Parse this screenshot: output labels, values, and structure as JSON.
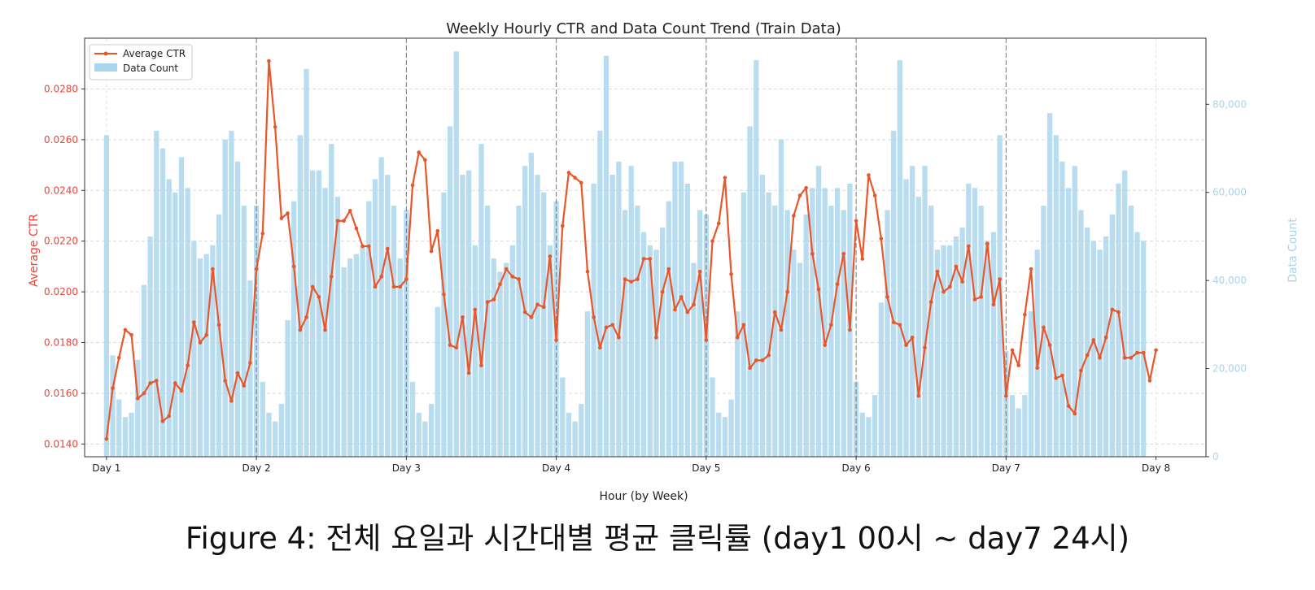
{
  "chart_data": {
    "type": "bar+line",
    "title": "Weekly Hourly CTR and Data Count Trend (Train Data)",
    "xlabel": "Hour (by Week)",
    "ylabel_left": "Average CTR",
    "ylabel_right": "Data Count",
    "x_ticks": [
      "Day 1",
      "Day 2",
      "Day 3",
      "Day 4",
      "Day 5",
      "Day 6",
      "Day 7",
      "Day 8"
    ],
    "xlim": [
      -3.5,
      176
    ],
    "ylim_left": [
      0.0135,
      0.03
    ],
    "ylim_right": [
      0,
      95000
    ],
    "y_ticks_left": [
      "0.0140",
      "0.0160",
      "0.0180",
      "0.0200",
      "0.0220",
      "0.0240",
      "0.0260",
      "0.0280"
    ],
    "y_ticks_left_values": [
      0.014,
      0.016,
      0.018,
      0.02,
      0.022,
      0.024,
      0.026,
      0.028
    ],
    "y_ticks_right": [
      "0",
      "20,000",
      "40,000",
      "60,000",
      "80,000"
    ],
    "y_ticks_right_values": [
      0,
      20000,
      40000,
      60000,
      80000
    ],
    "grid": true,
    "legend_position": "top-left",
    "series": [
      {
        "name": "Average CTR",
        "type": "line",
        "color": "#e8562a",
        "values": [
          0.0142,
          0.0162,
          0.0174,
          0.0185,
          0.0183,
          0.0158,
          0.016,
          0.0164,
          0.0165,
          0.0149,
          0.0151,
          0.0164,
          0.0161,
          0.0171,
          0.0188,
          0.018,
          0.0183,
          0.0209,
          0.0187,
          0.0165,
          0.0157,
          0.0168,
          0.0163,
          0.0172,
          0.0209,
          0.0223,
          0.0291,
          0.0265,
          0.0229,
          0.0231,
          0.021,
          0.0185,
          0.019,
          0.0202,
          0.0198,
          0.0185,
          0.0206,
          0.0228,
          0.0228,
          0.0232,
          0.0225,
          0.0218,
          0.0218,
          0.0202,
          0.0206,
          0.0217,
          0.0202,
          0.0202,
          0.0205,
          0.0242,
          0.0255,
          0.0252,
          0.0216,
          0.0224,
          0.0199,
          0.0179,
          0.0178,
          0.019,
          0.0168,
          0.0193,
          0.0171,
          0.0196,
          0.0197,
          0.0203,
          0.0209,
          0.0206,
          0.0205,
          0.0192,
          0.019,
          0.0195,
          0.0194,
          0.0214,
          0.0181,
          0.0226,
          0.0247,
          0.0245,
          0.0243,
          0.0208,
          0.019,
          0.0178,
          0.0186,
          0.0187,
          0.0182,
          0.0205,
          0.0204,
          0.0205,
          0.0213,
          0.0213,
          0.0182,
          0.02,
          0.0209,
          0.0193,
          0.0198,
          0.0192,
          0.0195,
          0.0208,
          0.0181,
          0.022,
          0.0227,
          0.0245,
          0.0207,
          0.0182,
          0.0187,
          0.017,
          0.0173,
          0.0173,
          0.0175,
          0.0192,
          0.0185,
          0.02,
          0.023,
          0.0238,
          0.0241,
          0.0215,
          0.0201,
          0.0179,
          0.0187,
          0.0203,
          0.0215,
          0.0185,
          0.0228,
          0.0213,
          0.0246,
          0.0238,
          0.0221,
          0.0198,
          0.0188,
          0.0187,
          0.0179,
          0.0182,
          0.0159,
          0.0178,
          0.0196,
          0.0208,
          0.02,
          0.0202,
          0.021,
          0.0204,
          0.0218,
          0.0197,
          0.0198,
          0.0219,
          0.0195,
          0.0205,
          0.0159,
          0.0177,
          0.0171,
          0.0191,
          0.0209,
          0.017,
          0.0186,
          0.0179,
          0.0166,
          0.0167,
          0.0155,
          0.0152,
          0.0169,
          0.0175,
          0.0181,
          0.0174,
          0.0182,
          0.0193,
          0.0192,
          0.0174,
          0.0174,
          0.0176,
          0.0176,
          0.0165,
          0.0177
        ]
      },
      {
        "name": "Data Count",
        "type": "bar",
        "color": "#a8d4ec",
        "values": [
          73000,
          23000,
          13000,
          9000,
          10000,
          22000,
          39000,
          50000,
          74000,
          70000,
          63000,
          60000,
          68000,
          61000,
          49000,
          45000,
          46000,
          48000,
          55000,
          72000,
          74000,
          67000,
          57000,
          40000,
          57000,
          17000,
          10000,
          8000,
          12000,
          31000,
          58000,
          73000,
          88000,
          65000,
          65000,
          61000,
          71000,
          59000,
          43000,
          45000,
          46000,
          48000,
          58000,
          63000,
          68000,
          64000,
          57000,
          45000,
          56000,
          17000,
          10000,
          8000,
          12000,
          34000,
          60000,
          75000,
          92000,
          64000,
          65000,
          48000,
          71000,
          57000,
          45000,
          42000,
          44000,
          48000,
          57000,
          66000,
          69000,
          64000,
          60000,
          48000,
          58000,
          18000,
          10000,
          8000,
          12000,
          33000,
          62000,
          74000,
          91000,
          64000,
          67000,
          56000,
          66000,
          57000,
          51000,
          48000,
          47000,
          52000,
          58000,
          67000,
          67000,
          62000,
          44000,
          56000,
          55000,
          18000,
          10000,
          9000,
          13000,
          33000,
          60000,
          75000,
          90000,
          64000,
          60000,
          57000,
          72000,
          56000,
          47000,
          44000,
          55000,
          61000,
          66000,
          61000,
          57000,
          61000,
          56000,
          62000,
          17000,
          10000,
          9000,
          14000,
          35000,
          56000,
          74000,
          90000,
          63000,
          66000,
          59000,
          66000,
          57000,
          47000,
          48000,
          48000,
          50000,
          52000,
          62000,
          61000,
          57000,
          49000,
          51000,
          73000,
          24000,
          14000,
          11000,
          14000,
          33000,
          47000,
          57000,
          78000,
          73000,
          67000,
          61000,
          66000,
          56000,
          52000,
          49000,
          47000,
          50000,
          55000,
          62000,
          65000,
          57000,
          51000,
          49000
        ]
      }
    ]
  },
  "caption": "Figure 4: 전체 요일과 시간대별 평균 클릭률 (day1 00시 ∼ day7 24시)"
}
